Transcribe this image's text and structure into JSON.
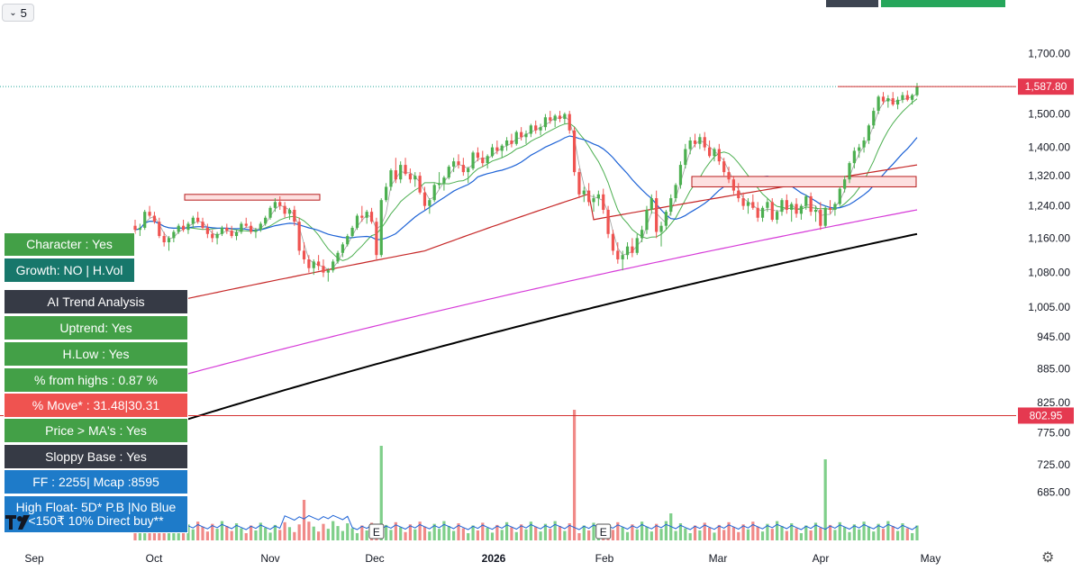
{
  "toolbar": {
    "interval_value": "5"
  },
  "chart_data": {
    "type": "candlestick",
    "price_axis": {
      "ticks": [
        "1,700.00",
        "1,500.00",
        "1,400.00",
        "1,320.00",
        "1,240.00",
        "1,160.00",
        "1,080.00",
        "1,005.00",
        "945.00",
        "885.00",
        "825.00",
        "775.00",
        "725.00",
        "685.00"
      ],
      "scale": "log"
    },
    "price_labels": {
      "last_price": "1,587.80",
      "horizontal_line": "802.95"
    },
    "time_axis": {
      "labels": [
        "Sep",
        "Oct",
        "Nov",
        "Dec",
        "2026",
        "Feb",
        "Mar",
        "Apr",
        "May"
      ]
    },
    "ohlc": [
      [
        1190,
        1205,
        1170,
        1180
      ],
      [
        1180,
        1195,
        1165,
        1185
      ],
      [
        1185,
        1230,
        1180,
        1225
      ],
      [
        1225,
        1240,
        1210,
        1215
      ],
      [
        1215,
        1225,
        1195,
        1200
      ],
      [
        1200,
        1210,
        1160,
        1165
      ],
      [
        1165,
        1175,
        1140,
        1150
      ],
      [
        1150,
        1165,
        1130,
        1160
      ],
      [
        1160,
        1180,
        1150,
        1175
      ],
      [
        1175,
        1195,
        1170,
        1190
      ],
      [
        1190,
        1205,
        1175,
        1180
      ],
      [
        1180,
        1200,
        1170,
        1195
      ],
      [
        1195,
        1215,
        1185,
        1210
      ],
      [
        1210,
        1225,
        1195,
        1200
      ],
      [
        1200,
        1210,
        1180,
        1185
      ],
      [
        1185,
        1195,
        1160,
        1170
      ],
      [
        1170,
        1180,
        1150,
        1160
      ],
      [
        1160,
        1175,
        1145,
        1170
      ],
      [
        1170,
        1190,
        1165,
        1185
      ],
      [
        1185,
        1195,
        1170,
        1178
      ],
      [
        1178,
        1190,
        1160,
        1165
      ],
      [
        1165,
        1180,
        1155,
        1175
      ],
      [
        1175,
        1200,
        1170,
        1195
      ],
      [
        1195,
        1210,
        1185,
        1190
      ],
      [
        1190,
        1200,
        1170,
        1175
      ],
      [
        1175,
        1185,
        1160,
        1180
      ],
      [
        1180,
        1200,
        1175,
        1195
      ],
      [
        1195,
        1215,
        1190,
        1210
      ],
      [
        1210,
        1240,
        1205,
        1235
      ],
      [
        1235,
        1260,
        1225,
        1250
      ],
      [
        1250,
        1265,
        1230,
        1240
      ],
      [
        1240,
        1250,
        1210,
        1220
      ],
      [
        1220,
        1235,
        1205,
        1230
      ],
      [
        1230,
        1240,
        1190,
        1200
      ],
      [
        1200,
        1210,
        1120,
        1130
      ],
      [
        1130,
        1150,
        1100,
        1110
      ],
      [
        1110,
        1120,
        1080,
        1090
      ],
      [
        1090,
        1110,
        1075,
        1105
      ],
      [
        1105,
        1120,
        1085,
        1095
      ],
      [
        1095,
        1110,
        1070,
        1080
      ],
      [
        1080,
        1090,
        1060,
        1085
      ],
      [
        1085,
        1110,
        1080,
        1105
      ],
      [
        1105,
        1130,
        1100,
        1125
      ],
      [
        1125,
        1150,
        1115,
        1145
      ],
      [
        1145,
        1170,
        1140,
        1165
      ],
      [
        1165,
        1190,
        1160,
        1185
      ],
      [
        1185,
        1220,
        1180,
        1215
      ],
      [
        1215,
        1240,
        1200,
        1210
      ],
      [
        1210,
        1230,
        1195,
        1225
      ],
      [
        1225,
        1235,
        1195,
        1200
      ],
      [
        1200,
        1210,
        1110,
        1120
      ],
      [
        1120,
        1260,
        1115,
        1255
      ],
      [
        1255,
        1300,
        1250,
        1290
      ],
      [
        1290,
        1340,
        1280,
        1335
      ],
      [
        1335,
        1370,
        1300,
        1310
      ],
      [
        1310,
        1360,
        1300,
        1350
      ],
      [
        1350,
        1370,
        1320,
        1325
      ],
      [
        1325,
        1340,
        1300,
        1310
      ],
      [
        1310,
        1330,
        1290,
        1320
      ],
      [
        1320,
        1330,
        1270,
        1275
      ],
      [
        1275,
        1290,
        1230,
        1240
      ],
      [
        1240,
        1260,
        1220,
        1255
      ],
      [
        1255,
        1300,
        1250,
        1295
      ],
      [
        1295,
        1330,
        1285,
        1300
      ],
      [
        1300,
        1320,
        1280,
        1315
      ],
      [
        1315,
        1350,
        1310,
        1345
      ],
      [
        1345,
        1370,
        1330,
        1360
      ],
      [
        1360,
        1380,
        1340,
        1350
      ],
      [
        1350,
        1370,
        1320,
        1330
      ],
      [
        1330,
        1345,
        1300,
        1340
      ],
      [
        1340,
        1390,
        1335,
        1385
      ],
      [
        1385,
        1400,
        1360,
        1370
      ],
      [
        1370,
        1390,
        1345,
        1355
      ],
      [
        1355,
        1380,
        1340,
        1375
      ],
      [
        1375,
        1410,
        1370,
        1400
      ],
      [
        1400,
        1420,
        1380,
        1390
      ],
      [
        1390,
        1410,
        1370,
        1405
      ],
      [
        1405,
        1430,
        1390,
        1420
      ],
      [
        1420,
        1440,
        1400,
        1410
      ],
      [
        1410,
        1450,
        1405,
        1445
      ],
      [
        1445,
        1460,
        1420,
        1430
      ],
      [
        1430,
        1450,
        1410,
        1440
      ],
      [
        1440,
        1470,
        1430,
        1465
      ],
      [
        1465,
        1480,
        1440,
        1450
      ],
      [
        1450,
        1470,
        1435,
        1460
      ],
      [
        1460,
        1500,
        1450,
        1490
      ],
      [
        1490,
        1510,
        1470,
        1480
      ],
      [
        1480,
        1500,
        1460,
        1495
      ],
      [
        1495,
        1510,
        1475,
        1485
      ],
      [
        1485,
        1505,
        1470,
        1500
      ],
      [
        1500,
        1510,
        1440,
        1450
      ],
      [
        1450,
        1460,
        1320,
        1330
      ],
      [
        1330,
        1340,
        1260,
        1270
      ],
      [
        1270,
        1290,
        1250,
        1280
      ],
      [
        1280,
        1300,
        1240,
        1250
      ],
      [
        1250,
        1270,
        1225,
        1260
      ],
      [
        1260,
        1280,
        1240,
        1270
      ],
      [
        1270,
        1285,
        1220,
        1230
      ],
      [
        1230,
        1240,
        1160,
        1170
      ],
      [
        1170,
        1180,
        1120,
        1130
      ],
      [
        1130,
        1150,
        1100,
        1110
      ],
      [
        1110,
        1130,
        1085,
        1120
      ],
      [
        1120,
        1150,
        1110,
        1140
      ],
      [
        1140,
        1160,
        1115,
        1125
      ],
      [
        1125,
        1170,
        1120,
        1160
      ],
      [
        1160,
        1190,
        1150,
        1180
      ],
      [
        1180,
        1240,
        1170,
        1230
      ],
      [
        1230,
        1270,
        1220,
        1260
      ],
      [
        1260,
        1280,
        1160,
        1175
      ],
      [
        1175,
        1200,
        1140,
        1190
      ],
      [
        1190,
        1230,
        1180,
        1225
      ],
      [
        1225,
        1270,
        1215,
        1260
      ],
      [
        1260,
        1300,
        1250,
        1295
      ],
      [
        1295,
        1360,
        1285,
        1350
      ],
      [
        1350,
        1410,
        1340,
        1395
      ],
      [
        1395,
        1430,
        1380,
        1420
      ],
      [
        1420,
        1440,
        1400,
        1410
      ],
      [
        1410,
        1440,
        1395,
        1430
      ],
      [
        1430,
        1445,
        1390,
        1400
      ],
      [
        1400,
        1420,
        1370,
        1375
      ],
      [
        1375,
        1400,
        1360,
        1395
      ],
      [
        1395,
        1410,
        1350,
        1360
      ],
      [
        1360,
        1370,
        1320,
        1330
      ],
      [
        1330,
        1345,
        1300,
        1310
      ],
      [
        1310,
        1320,
        1270,
        1280
      ],
      [
        1280,
        1300,
        1250,
        1260
      ],
      [
        1260,
        1275,
        1230,
        1240
      ],
      [
        1240,
        1260,
        1220,
        1250
      ],
      [
        1250,
        1270,
        1230,
        1235
      ],
      [
        1235,
        1250,
        1200,
        1210
      ],
      [
        1210,
        1240,
        1200,
        1235
      ],
      [
        1235,
        1260,
        1225,
        1250
      ],
      [
        1250,
        1260,
        1200,
        1205
      ],
      [
        1205,
        1230,
        1195,
        1225
      ],
      [
        1225,
        1260,
        1215,
        1255
      ],
      [
        1255,
        1270,
        1220,
        1230
      ],
      [
        1230,
        1250,
        1200,
        1245
      ],
      [
        1245,
        1260,
        1210,
        1220
      ],
      [
        1220,
        1245,
        1205,
        1240
      ],
      [
        1240,
        1270,
        1230,
        1265
      ],
      [
        1265,
        1275,
        1215,
        1225
      ],
      [
        1225,
        1240,
        1200,
        1230
      ],
      [
        1230,
        1250,
        1180,
        1190
      ],
      [
        1190,
        1240,
        1185,
        1235
      ],
      [
        1235,
        1255,
        1220,
        1230
      ],
      [
        1230,
        1250,
        1215,
        1245
      ],
      [
        1245,
        1290,
        1240,
        1285
      ],
      [
        1285,
        1320,
        1275,
        1310
      ],
      [
        1310,
        1360,
        1300,
        1355
      ],
      [
        1355,
        1400,
        1340,
        1390
      ],
      [
        1390,
        1410,
        1370,
        1400
      ],
      [
        1400,
        1430,
        1385,
        1420
      ],
      [
        1420,
        1470,
        1410,
        1465
      ],
      [
        1465,
        1520,
        1455,
        1510
      ],
      [
        1510,
        1560,
        1500,
        1555
      ],
      [
        1555,
        1570,
        1530,
        1540
      ],
      [
        1540,
        1560,
        1520,
        1550
      ],
      [
        1550,
        1570,
        1525,
        1530
      ],
      [
        1530,
        1555,
        1515,
        1545
      ],
      [
        1545,
        1570,
        1535,
        1560
      ],
      [
        1560,
        1575,
        1540,
        1545
      ],
      [
        1545,
        1565,
        1530,
        1560
      ],
      [
        1560,
        1600,
        1555,
        1588
      ]
    ],
    "moving_averages": [
      {
        "color": "#9e9e9e",
        "period": "short"
      },
      {
        "color": "#4caf50",
        "period": "10"
      },
      {
        "color": "#1e63d6",
        "period": "21"
      },
      {
        "color": "#c62828",
        "period": "50"
      },
      {
        "color": "#d63bd8",
        "period": "100"
      },
      {
        "color": "#000000",
        "period": "200"
      }
    ],
    "volume_panel": {
      "markers": [
        "E",
        "E"
      ]
    },
    "legend": "none",
    "grid": false
  },
  "info_panel": {
    "character": "Character : Yes",
    "growth": "Growth: NO | H.Vol",
    "ai_trend_title": "AI Trend Analysis",
    "uptrend": "Uptrend: Yes",
    "hlow": "H.Low : Yes",
    "from_highs": "% from highs : 0.87 %",
    "move": "% Move* : 31.48|30.31",
    "price_ma": "Price > MA's : Yes",
    "sloppy": "Sloppy Base : Yes",
    "ff": "FF : 2255| Mcap :8595",
    "high_float_1": "High Float- 5D* P.B |No Blue",
    "high_float_2": "<150₹ 10% Direct buy**"
  },
  "colors": {
    "up": "#26a69a",
    "up_fill": "#4caf50",
    "down": "#ef5350",
    "price_tag": "#e53950",
    "hline": "#d32f2f"
  },
  "logo_text": "TV"
}
